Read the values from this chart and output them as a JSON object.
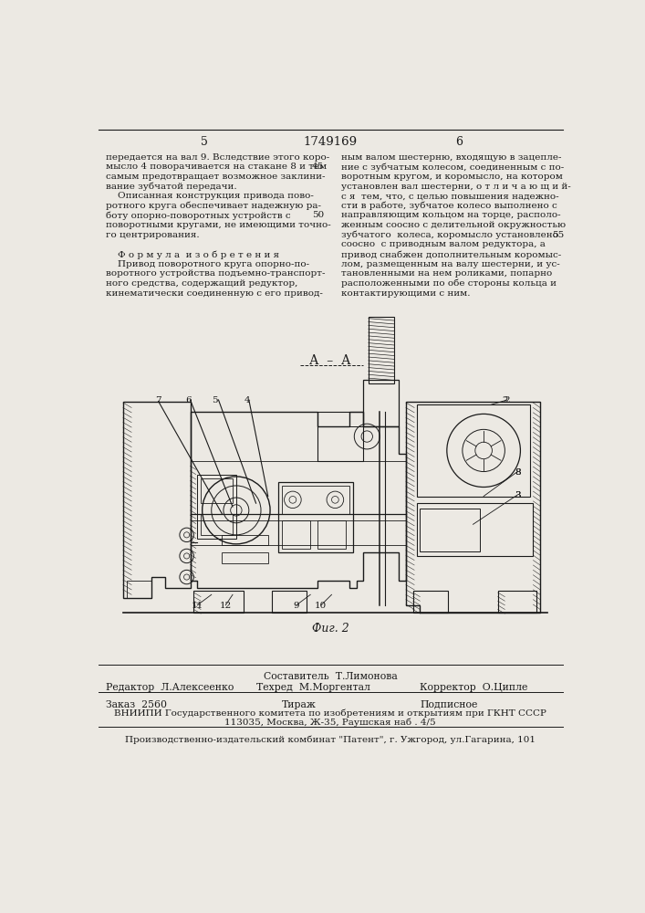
{
  "page_number_left": "5",
  "patent_number": "1749169",
  "page_number_right": "6",
  "background_color": "#ece9e3",
  "text_color": "#1a1a1a",
  "left_col_lines": [
    "передается на вал 9. Вследствие этого коро-",
    "мысло 4 поворачивается на стакане 8 и тем",
    "самым предотвращает возможное заклини-",
    "вание зубчатой передачи.",
    "    Описанная конструкция привода пово-",
    "ротного круга обеспечивает надежную ра-",
    "боту опорно-поворотных устройств с",
    "поворотными кругами, не имеющими точно-",
    "го центрирования.",
    "",
    "    Ф о р м у л а  и з о б р е т е н и я",
    "    Привод поворотного круга опорно-по-",
    "воротного устройства подъемно-транспорт-",
    "ного средства, содержащий редуктор,",
    "кинематически соединенную с его привод-"
  ],
  "left_col_linenums": [
    null,
    45,
    null,
    null,
    null,
    null,
    50,
    null,
    null,
    null,
    null,
    null,
    null,
    null,
    null
  ],
  "right_col_lines": [
    "ным валом шестерню, входящую в зацепле-",
    "ние с зубчатым колесом, соединенным с по-",
    "воротным кругом, и коромысло, на котором",
    "установлен вал шестерни, о т л и ч а ю щ и й-",
    "с я  тем, что, с целью повышения надежно-",
    "сти в работе, зубчатое колесо выполнено с",
    "направляющим кольцом на торце, располо-",
    "женным соосно с делительной окружностью",
    "зубчатого  колеса, коромысло установлено",
    "соосно  с приводным валом редуктора, а",
    "привод снабжен дополнительным коромыс-",
    "лом, размещенным на валу шестерни, и ус-",
    "тановленными на нем роликами, попарно",
    "расположенными по обе стороны кольца и",
    "контактирующими с ним."
  ],
  "right_col_linenums": [
    null,
    null,
    null,
    null,
    null,
    null,
    null,
    null,
    55,
    null,
    null,
    null,
    null,
    null,
    null
  ],
  "section_label": "А  –  А",
  "figure_caption": "Фиг. 2",
  "staff_sestavitel_label": "Составитель",
  "staff_sestavitel": "Т.Лимонова",
  "staff_redaktor_label": "Редактор",
  "staff_redaktor": "Л.Алексеенко",
  "staff_tehred_label": "Техред",
  "staff_tehred": "М.Моргентал",
  "staff_korrektor_label": "Корректор",
  "staff_korrektor": "О.Ципле",
  "order_label": "Заказ",
  "order_num": "2560",
  "tirazh_label": "Тираж",
  "podpisnoe_label": "Подписное",
  "vniipи_line": "ВНИИПИ Государственного комитета по изобретениям и открытиям при ГКНТ СССР",
  "address_line": "113035, Москва, Ж-35, Раушская наб . 4/5",
  "factory_line": "Производственно-издательский комбинат \"Патент\", г. Ужгород, ул.Гагарина, 101"
}
